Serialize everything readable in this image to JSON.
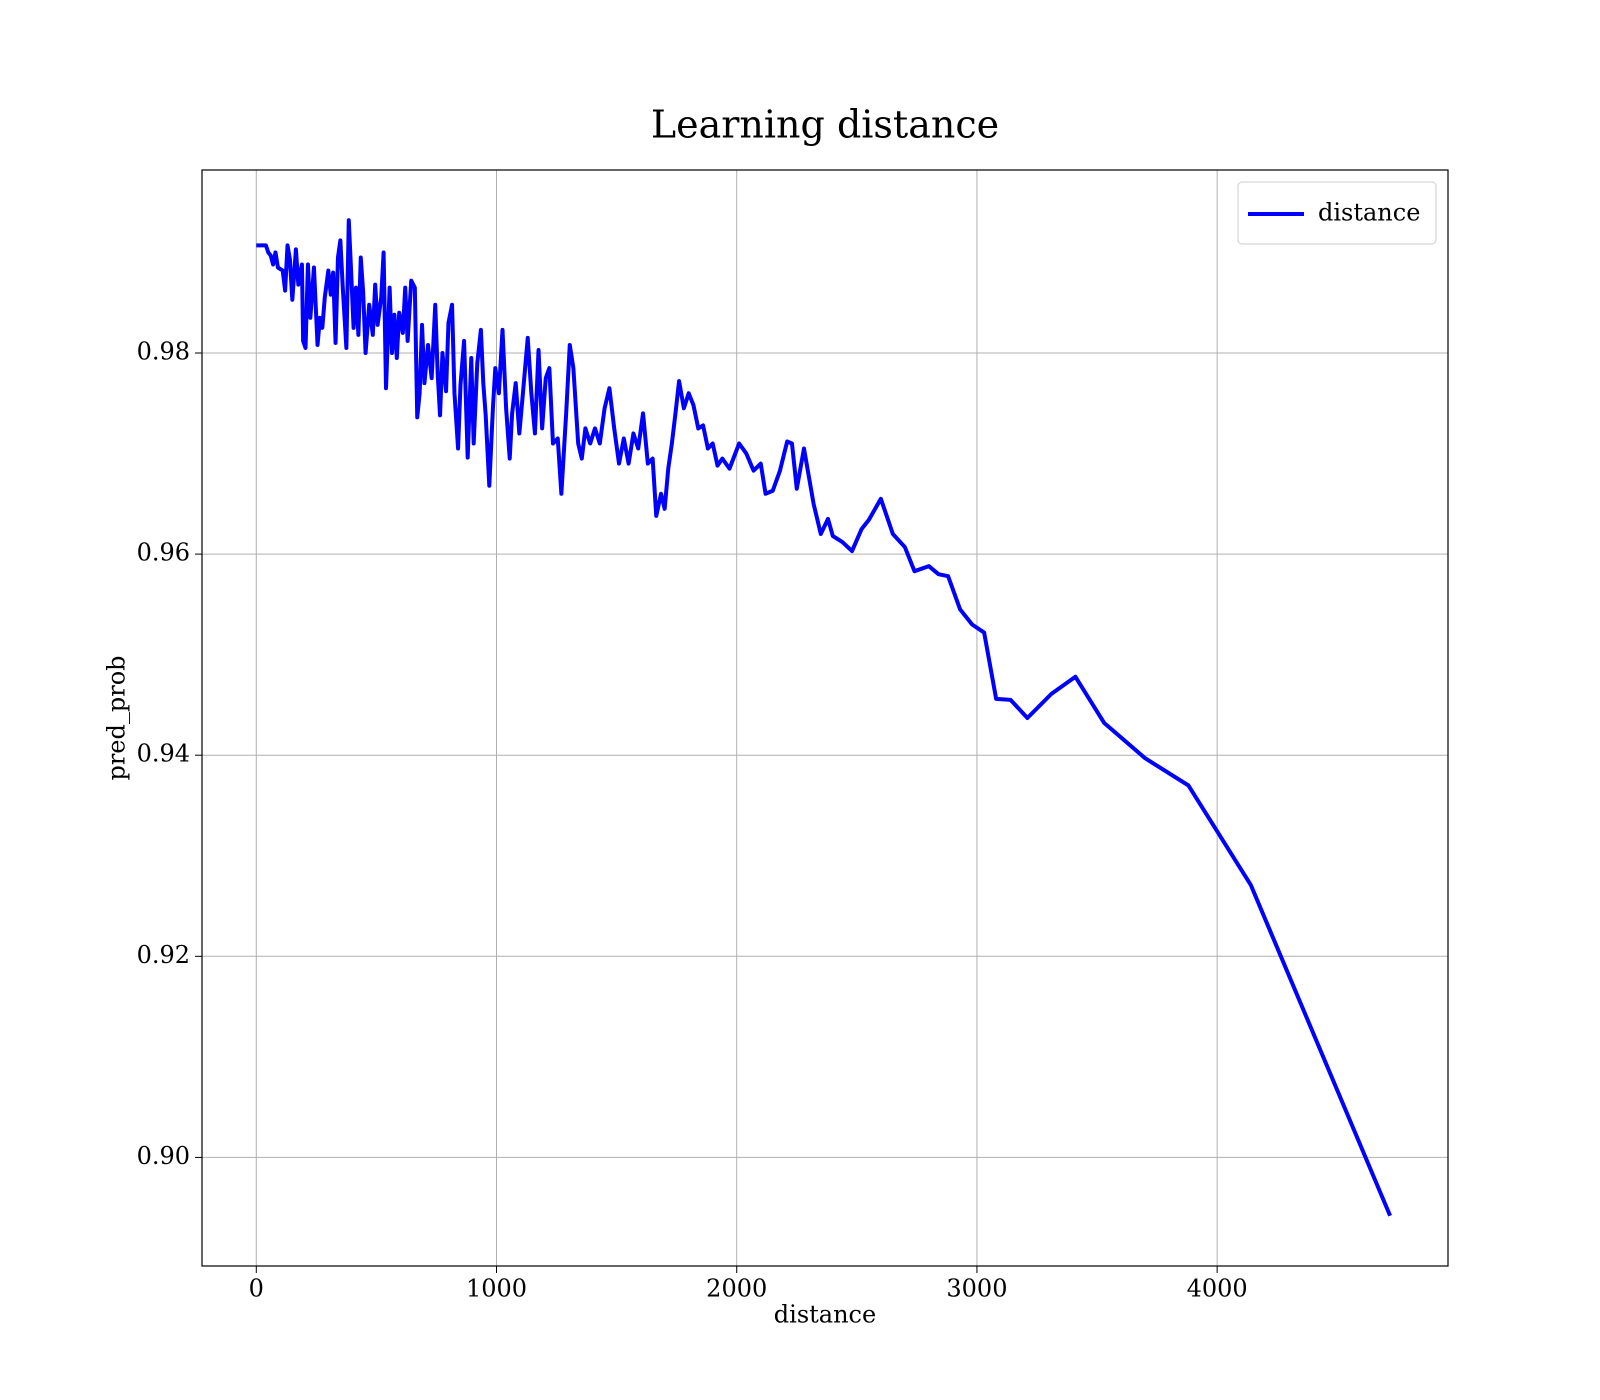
{
  "chart_data": {
    "type": "line",
    "title": "Learning distance",
    "x_label": "distance",
    "y_label": "pred_prob",
    "x": [
      0,
      40,
      50,
      60,
      70,
      80,
      90,
      110,
      120,
      130,
      140,
      150,
      165,
      175,
      190,
      195,
      205,
      215,
      225,
      240,
      255,
      265,
      275,
      285,
      300,
      310,
      320,
      330,
      340,
      350,
      360,
      375,
      385,
      395,
      405,
      415,
      425,
      435,
      445,
      455,
      470,
      485,
      495,
      505,
      520,
      530,
      540,
      555,
      565,
      575,
      585,
      595,
      610,
      620,
      630,
      645,
      660,
      670,
      680,
      690,
      700,
      715,
      730,
      745,
      755,
      765,
      775,
      790,
      800,
      815,
      825,
      840,
      850,
      865,
      880,
      895,
      905,
      920,
      935,
      945,
      955,
      970,
      985,
      995,
      1010,
      1025,
      1040,
      1055,
      1065,
      1080,
      1095,
      1110,
      1130,
      1145,
      1160,
      1175,
      1190,
      1205,
      1220,
      1235,
      1255,
      1270,
      1290,
      1305,
      1320,
      1340,
      1355,
      1370,
      1390,
      1410,
      1430,
      1450,
      1470,
      1490,
      1510,
      1530,
      1550,
      1570,
      1590,
      1610,
      1630,
      1650,
      1665,
      1685,
      1700,
      1715,
      1730,
      1745,
      1760,
      1780,
      1800,
      1820,
      1840,
      1860,
      1880,
      1900,
      1920,
      1940,
      1970,
      2010,
      2040,
      2070,
      2100,
      2120,
      2150,
      2180,
      2210,
      2230,
      2250,
      2280,
      2320,
      2350,
      2380,
      2400,
      2440,
      2480,
      2520,
      2550,
      2600,
      2650,
      2700,
      2740,
      2800,
      2840,
      2880,
      2930,
      2980,
      3030,
      3080,
      3140,
      3210,
      3310,
      3410,
      3530,
      3700,
      3880,
      4140,
      4720
    ],
    "series": [
      {
        "name": "distance",
        "color": "#0000ff",
        "values": [
          0.9907,
          0.9907,
          0.99,
          0.9897,
          0.9888,
          0.99,
          0.9885,
          0.9882,
          0.9862,
          0.9907,
          0.9893,
          0.9853,
          0.9903,
          0.9868,
          0.9888,
          0.9812,
          0.9805,
          0.9888,
          0.9835,
          0.9885,
          0.9808,
          0.9835,
          0.9825,
          0.9855,
          0.9882,
          0.9858,
          0.988,
          0.981,
          0.9895,
          0.9912,
          0.9865,
          0.9805,
          0.9932,
          0.988,
          0.9825,
          0.9865,
          0.9818,
          0.9895,
          0.986,
          0.98,
          0.9848,
          0.9818,
          0.9868,
          0.9828,
          0.9855,
          0.99,
          0.9765,
          0.9865,
          0.98,
          0.9838,
          0.9795,
          0.984,
          0.982,
          0.9865,
          0.9812,
          0.9872,
          0.9865,
          0.9736,
          0.976,
          0.9828,
          0.977,
          0.9808,
          0.9775,
          0.9848,
          0.978,
          0.9738,
          0.98,
          0.9762,
          0.983,
          0.9848,
          0.976,
          0.9705,
          0.9768,
          0.9812,
          0.9696,
          0.9795,
          0.971,
          0.979,
          0.9823,
          0.977,
          0.9738,
          0.9668,
          0.9745,
          0.9785,
          0.976,
          0.9823,
          0.9745,
          0.9695,
          0.974,
          0.977,
          0.972,
          0.976,
          0.9815,
          0.976,
          0.972,
          0.9803,
          0.9725,
          0.9775,
          0.9785,
          0.971,
          0.9715,
          0.966,
          0.974,
          0.9808,
          0.9785,
          0.971,
          0.9695,
          0.9725,
          0.971,
          0.9725,
          0.971,
          0.9745,
          0.9765,
          0.9725,
          0.969,
          0.9715,
          0.969,
          0.972,
          0.9705,
          0.974,
          0.969,
          0.9695,
          0.9638,
          0.966,
          0.9645,
          0.9685,
          0.971,
          0.974,
          0.9772,
          0.9745,
          0.976,
          0.9748,
          0.9725,
          0.9728,
          0.9705,
          0.971,
          0.9688,
          0.9695,
          0.9685,
          0.971,
          0.97,
          0.9683,
          0.969,
          0.966,
          0.9663,
          0.9683,
          0.9712,
          0.971,
          0.9665,
          0.9705,
          0.965,
          0.962,
          0.9635,
          0.9618,
          0.9612,
          0.9603,
          0.9625,
          0.9634,
          0.9655,
          0.962,
          0.9607,
          0.9583,
          0.9588,
          0.958,
          0.9578,
          0.9545,
          0.953,
          0.9522,
          0.9456,
          0.9455,
          0.9437,
          0.9461,
          0.9478,
          0.9432,
          0.9397,
          0.937,
          0.9271,
          0.8942
        ]
      }
    ],
    "xlim": [
      -226,
      4961
    ],
    "ylim": [
      0.8892,
      0.9982
    ],
    "xticks": [
      0,
      1000,
      2000,
      3000,
      4000
    ],
    "yticks": [
      {
        "value": 0.9,
        "label": "0.90"
      },
      0.92,
      0.94,
      0.96,
      0.98
    ],
    "grid": true,
    "legend": "upper right"
  }
}
